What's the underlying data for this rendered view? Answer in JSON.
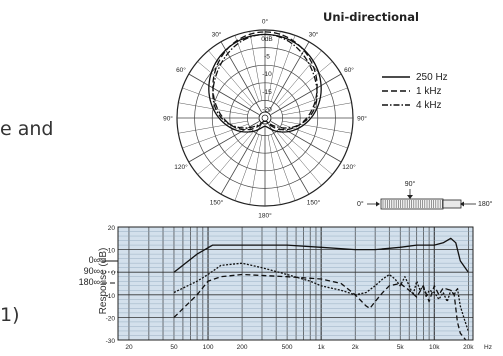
{
  "left_fragments": {
    "line1": "e and",
    "line2": "1)"
  },
  "polar": {
    "title": "Uni-directional",
    "angle_labels": [
      "0°",
      "30°",
      "60°",
      "90°",
      "120°",
      "150°",
      "180°",
      "150°",
      "120°",
      "90°",
      "60°",
      "30°"
    ],
    "ring_labels": [
      "0dB",
      "-5",
      "-10",
      "-15",
      "-20"
    ],
    "legend": [
      {
        "name": "250 Hz",
        "style": "solid"
      },
      {
        "name": "1 kHz",
        "style": "dashed"
      },
      {
        "name": "4 kHz",
        "style": "dashdot"
      }
    ]
  },
  "mic": {
    "labels": {
      "left": "0°",
      "top": "90°",
      "right": "180°"
    }
  },
  "response_legend": [
    {
      "name": "0∞",
      "style": "solid"
    },
    {
      "name": "90∞",
      "style": "dotted"
    },
    {
      "name": "180∞",
      "style": "dashed"
    }
  ],
  "chart_data": {
    "type": "line",
    "ylabel": "Response (dB)",
    "xlabel": "Hz",
    "x_scale": "log",
    "xlim": [
      16,
      22000
    ],
    "ylim": [
      -30,
      20
    ],
    "y_ticks": [
      20,
      10,
      0,
      -10,
      -20,
      -30
    ],
    "x_tick_labels": [
      {
        "v": 20,
        "t": "20"
      },
      {
        "v": 50,
        "t": "50"
      },
      {
        "v": 100,
        "t": "100"
      },
      {
        "v": 200,
        "t": "200"
      },
      {
        "v": 500,
        "t": "500"
      },
      {
        "v": 1000,
        "t": "1k"
      },
      {
        "v": 2000,
        "t": "2k"
      },
      {
        "v": 5000,
        "t": "5k"
      },
      {
        "v": 10000,
        "t": "10k"
      },
      {
        "v": 20000,
        "t": "20k"
      }
    ],
    "series": [
      {
        "style": "solid",
        "values": [
          [
            50,
            0
          ],
          [
            80,
            8
          ],
          [
            110,
            12
          ],
          [
            200,
            12
          ],
          [
            500,
            12
          ],
          [
            1000,
            11
          ],
          [
            2000,
            10
          ],
          [
            3000,
            10
          ],
          [
            5000,
            11
          ],
          [
            7000,
            12
          ],
          [
            10000,
            12
          ],
          [
            12000,
            13
          ],
          [
            14000,
            15
          ],
          [
            15500,
            13
          ],
          [
            17000,
            5
          ],
          [
            20000,
            0
          ]
        ]
      },
      {
        "style": "dotted",
        "values": [
          [
            50,
            -9
          ],
          [
            80,
            -4
          ],
          [
            100,
            -1
          ],
          [
            130,
            3
          ],
          [
            200,
            4
          ],
          [
            300,
            2
          ],
          [
            500,
            -1
          ],
          [
            800,
            -4
          ],
          [
            1000,
            -6
          ],
          [
            1500,
            -8
          ],
          [
            2000,
            -10
          ],
          [
            2500,
            -9
          ],
          [
            3000,
            -6
          ],
          [
            3500,
            -3
          ],
          [
            4000,
            -1
          ],
          [
            4500,
            -3
          ],
          [
            5000,
            -6
          ],
          [
            5500,
            -2
          ],
          [
            6000,
            -6
          ],
          [
            6500,
            -10
          ],
          [
            7000,
            -4
          ],
          [
            7500,
            -8
          ],
          [
            8000,
            -6
          ],
          [
            8500,
            -11
          ],
          [
            9000,
            -8
          ],
          [
            10000,
            -9
          ],
          [
            11000,
            -12
          ],
          [
            12000,
            -9
          ],
          [
            13000,
            -13
          ],
          [
            14000,
            -8
          ],
          [
            15000,
            -10
          ],
          [
            16000,
            -7
          ],
          [
            17000,
            -15
          ],
          [
            18500,
            -21
          ],
          [
            20000,
            -26
          ]
        ]
      },
      {
        "style": "dashed",
        "values": [
          [
            50,
            -20
          ],
          [
            80,
            -10
          ],
          [
            100,
            -4
          ],
          [
            130,
            -2
          ],
          [
            200,
            -1
          ],
          [
            500,
            -2
          ],
          [
            1000,
            -3
          ],
          [
            1500,
            -5
          ],
          [
            2000,
            -10
          ],
          [
            2500,
            -15
          ],
          [
            2700,
            -16
          ],
          [
            3000,
            -13
          ],
          [
            3500,
            -9
          ],
          [
            4000,
            -6
          ],
          [
            5000,
            -5
          ],
          [
            6000,
            -8
          ],
          [
            7000,
            -11
          ],
          [
            8000,
            -6
          ],
          [
            9000,
            -13
          ],
          [
            10000,
            -6
          ],
          [
            11000,
            -10
          ],
          [
            12000,
            -7
          ],
          [
            14000,
            -8
          ],
          [
            15000,
            -10
          ],
          [
            16000,
            -22
          ],
          [
            17000,
            -27
          ],
          [
            19000,
            -30
          ]
        ]
      }
    ]
  }
}
